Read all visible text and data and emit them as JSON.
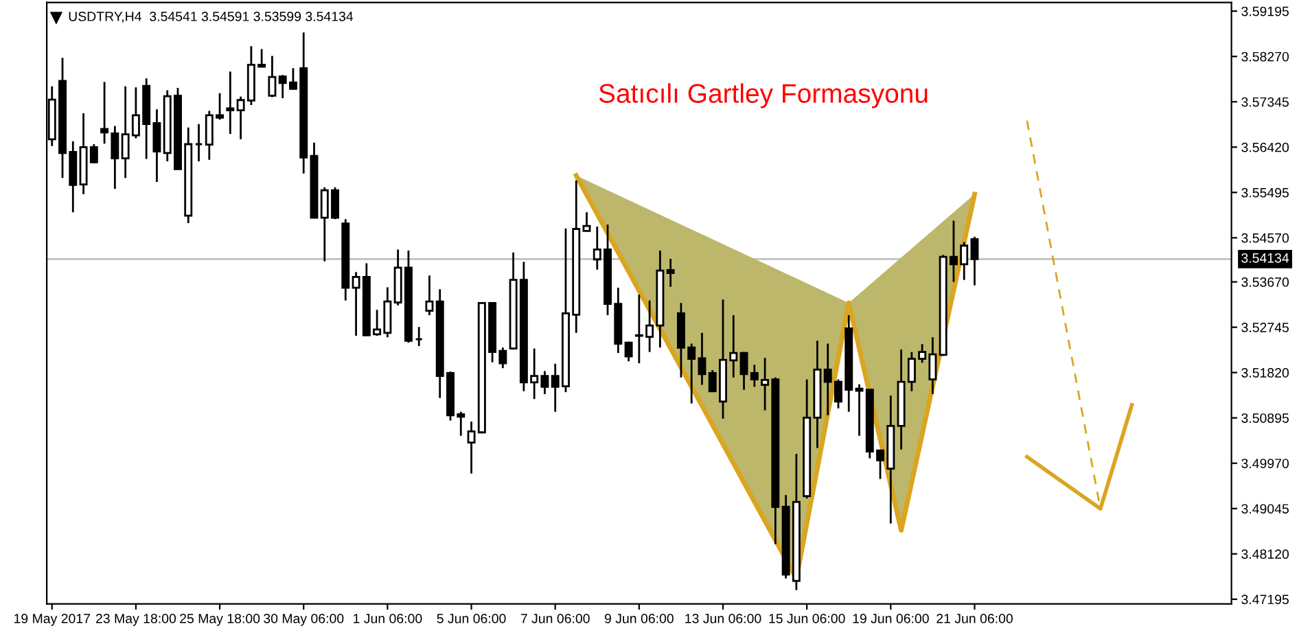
{
  "chart_data": {
    "type": "candlestick",
    "title": "USDTRY,H4  3.54541 3.54591 3.53599 3.54134",
    "annotations": [
      "Satıcılı Gartley Formasyonu"
    ],
    "categories": [
      "19 May 2017",
      null,
      null,
      null,
      null,
      null,
      null,
      null,
      "23 May 18:00",
      null,
      null,
      null,
      null,
      null,
      null,
      null,
      "25 May 18:00",
      null,
      null,
      null,
      null,
      null,
      null,
      null,
      "30 May 06:00",
      null,
      null,
      null,
      null,
      null,
      null,
      null,
      "1 Jun 06:00",
      null,
      null,
      null,
      null,
      null,
      null,
      null,
      "5 Jun 06:00",
      null,
      null,
      null,
      null,
      null,
      null,
      null,
      "7 Jun 06:00",
      null,
      null,
      null,
      null,
      null,
      null,
      null,
      "9 Jun 06:00",
      null,
      null,
      null,
      null,
      null,
      null,
      null,
      "13 Jun 06:00",
      null,
      null,
      null,
      null,
      null,
      null,
      null,
      "15 Jun 06:00",
      null,
      null,
      null,
      null,
      null,
      null,
      null,
      "19 Jun 06:00",
      null,
      null,
      null,
      null,
      null,
      null,
      null,
      "21 Jun 06:00",
      null,
      null,
      null,
      null,
      null,
      null,
      null,
      null,
      null,
      null,
      null,
      null,
      null,
      null,
      null,
      null,
      null,
      null,
      null,
      null,
      null,
      null,
      null,
      null
    ],
    "ohlc": [
      [
        3.5658,
        3.5766,
        3.5644,
        3.5739
      ],
      [
        3.5777,
        3.5824,
        3.5579,
        3.563
      ],
      [
        3.5632,
        3.5654,
        3.5509,
        3.5565
      ],
      [
        3.5566,
        3.5711,
        3.5546,
        3.5642
      ],
      [
        3.5642,
        3.5648,
        3.5609,
        3.5611
      ],
      [
        3.5679,
        3.5775,
        3.5649,
        3.5672
      ],
      [
        3.567,
        3.5685,
        3.5557,
        3.5619
      ],
      [
        3.5619,
        3.5766,
        3.5579,
        3.5668
      ],
      [
        3.5666,
        3.5764,
        3.566,
        3.5707
      ],
      [
        3.5767,
        3.5782,
        3.5618,
        3.5689
      ],
      [
        3.5691,
        3.5719,
        3.5571,
        3.5633
      ],
      [
        3.563,
        3.5758,
        3.5613,
        3.5746
      ],
      [
        3.5747,
        3.5763,
        3.5596,
        3.5597
      ],
      [
        3.5502,
        3.5682,
        3.5487,
        3.5648
      ],
      [
        3.5648,
        3.5689,
        3.5613,
        3.5648
      ],
      [
        3.5647,
        3.5716,
        3.5616,
        3.5707
      ],
      [
        3.5707,
        3.5752,
        3.5698,
        3.5702
      ],
      [
        3.5721,
        3.5796,
        3.5669,
        3.5717
      ],
      [
        3.5717,
        3.5745,
        3.5658,
        3.5738
      ],
      [
        3.5737,
        3.5848,
        3.5728,
        3.581
      ],
      [
        3.581,
        3.5842,
        3.5805,
        3.5806
      ],
      [
        3.5747,
        3.5828,
        3.5744,
        3.5785
      ],
      [
        3.5786,
        3.5789,
        3.5742,
        3.5773
      ],
      [
        3.5774,
        3.5803,
        3.5759,
        3.5761
      ],
      [
        3.5803,
        3.5876,
        3.5588,
        3.5621
      ],
      [
        3.5624,
        3.5651,
        3.5498,
        3.5498
      ],
      [
        3.5498,
        3.556,
        3.5409,
        3.5554
      ],
      [
        3.5554,
        3.556,
        3.5495,
        3.5498
      ],
      [
        3.5486,
        3.5495,
        3.5329,
        3.5355
      ],
      [
        3.5355,
        3.5387,
        3.5257,
        3.5377
      ],
      [
        3.5377,
        3.5405,
        3.5257,
        3.5258
      ],
      [
        3.526,
        3.531,
        3.5257,
        3.527
      ],
      [
        3.5263,
        3.5356,
        3.5254,
        3.5327
      ],
      [
        3.5325,
        3.5433,
        3.5319,
        3.5396
      ],
      [
        3.5396,
        3.5431,
        3.5243,
        3.5247
      ],
      [
        3.525,
        3.5275,
        3.5236,
        3.525
      ],
      [
        3.5308,
        3.538,
        3.5299,
        3.5327
      ],
      [
        3.5327,
        3.5352,
        3.513,
        3.5175
      ],
      [
        3.5181,
        3.5184,
        3.5084,
        3.5095
      ],
      [
        3.5097,
        3.5102,
        3.5053,
        3.5092
      ],
      [
        3.5039,
        3.5082,
        3.4976,
        3.5062
      ],
      [
        3.506,
        3.5324,
        3.5058,
        3.5324
      ],
      [
        3.5324,
        3.5324,
        3.5203,
        3.5224
      ],
      [
        3.5226,
        3.5233,
        3.5191,
        3.5201
      ],
      [
        3.5231,
        3.5427,
        3.5229,
        3.5371
      ],
      [
        3.5371,
        3.5408,
        3.5144,
        3.5162
      ],
      [
        3.5162,
        3.5231,
        3.5128,
        3.5175
      ],
      [
        3.5175,
        3.5185,
        3.5138,
        3.5153
      ],
      [
        3.5175,
        3.52,
        3.5102,
        3.5153
      ],
      [
        3.5154,
        3.5476,
        3.5142,
        3.5303
      ],
      [
        3.53,
        3.5574,
        3.5263,
        3.5475
      ],
      [
        3.5471,
        3.5509,
        3.547,
        3.5481
      ],
      [
        3.5413,
        3.548,
        3.5392,
        3.5433
      ],
      [
        3.5433,
        3.5484,
        3.5299,
        3.5322
      ],
      [
        3.5322,
        3.5355,
        3.5222,
        3.5241
      ],
      [
        3.5243,
        3.5245,
        3.5205,
        3.5215
      ],
      [
        3.5258,
        3.5341,
        3.5201,
        3.5257
      ],
      [
        3.5255,
        3.5329,
        3.5224,
        3.5278
      ],
      [
        3.5278,
        3.5431,
        3.5233,
        3.539
      ],
      [
        3.5391,
        3.5414,
        3.5357,
        3.5385
      ],
      [
        3.5303,
        3.5324,
        3.5172,
        3.5233
      ],
      [
        3.5233,
        3.5241,
        3.5119,
        3.521
      ],
      [
        3.5211,
        3.5263,
        3.5157,
        3.5179
      ],
      [
        3.5181,
        3.5187,
        3.5144,
        3.5144
      ],
      [
        3.5123,
        3.5331,
        3.5088,
        3.5208
      ],
      [
        3.5207,
        3.5299,
        3.5172,
        3.5222
      ],
      [
        3.5222,
        3.5224,
        3.5147,
        3.5179
      ],
      [
        3.5181,
        3.5198,
        3.5153,
        3.5168
      ],
      [
        3.5157,
        3.5212,
        3.5105,
        3.5167
      ],
      [
        3.5168,
        3.5172,
        3.4832,
        3.4908
      ],
      [
        3.4908,
        3.4932,
        3.4762,
        3.477
      ],
      [
        3.4757,
        3.5016,
        3.4738,
        3.4918
      ],
      [
        3.493,
        3.5168,
        3.4925,
        3.509
      ],
      [
        3.509,
        3.5247,
        3.5028,
        3.5188
      ],
      [
        3.5188,
        3.5241,
        3.5095,
        3.5163
      ],
      [
        3.5163,
        3.5168,
        3.5109,
        3.5123
      ],
      [
        3.5272,
        3.5299,
        3.5102,
        3.5147
      ],
      [
        3.5149,
        3.5158,
        3.5053,
        3.5145
      ],
      [
        3.5147,
        3.5147,
        3.5007,
        3.5021
      ],
      [
        3.5023,
        3.5023,
        3.4965,
        3.5003
      ],
      [
        3.4986,
        3.5135,
        3.4874,
        3.5073
      ],
      [
        3.5073,
        3.5229,
        3.5025,
        3.5163
      ],
      [
        3.5163,
        3.5224,
        3.5144,
        3.521
      ],
      [
        3.521,
        3.524,
        3.5202,
        3.5224
      ],
      [
        3.5168,
        3.5254,
        3.5138,
        3.5219
      ],
      [
        3.5218,
        3.5422,
        3.5216,
        3.5418
      ],
      [
        3.5418,
        3.5492,
        3.5367,
        3.5403
      ],
      [
        3.5403,
        3.5448,
        3.5371,
        3.5441
      ],
      [
        3.54541,
        3.54591,
        3.53599,
        3.54134
      ],
      null,
      null,
      null,
      null,
      null,
      null,
      null,
      null,
      null,
      null,
      null,
      null,
      null,
      null,
      null,
      null,
      null,
      null,
      null,
      null,
      null,
      null,
      null,
      null
    ],
    "series": [
      {
        "type": "area",
        "color": "#daa520",
        "values": [
          null,
          null,
          null,
          null,
          null,
          null,
          null,
          null,
          null,
          null,
          null,
          null,
          null,
          null,
          null,
          null,
          null,
          null,
          null,
          null,
          null,
          null,
          null,
          null,
          null,
          null,
          null,
          null,
          null,
          null,
          null,
          null,
          null,
          null,
          null,
          null,
          null,
          null,
          null,
          null,
          null,
          null,
          null,
          null,
          null,
          null,
          null,
          null,
          null,
          null,
          3.5584,
          null,
          null,
          null,
          null,
          null,
          null,
          null,
          null,
          null,
          null,
          null,
          null,
          null,
          null,
          null,
          null,
          null,
          null,
          null,
          null,
          3.4762,
          null,
          null,
          null,
          null,
          3.5324,
          null,
          null,
          null,
          null,
          3.486,
          null,
          null,
          null,
          null,
          null,
          null,
          3.5546,
          null,
          null,
          null,
          null,
          null,
          null,
          null,
          null,
          null,
          null,
          null,
          null,
          null,
          null,
          null,
          null,
          null,
          null,
          null,
          null,
          null,
          null,
          null,
          null
        ]
      },
      {
        "type": "line",
        "color": "#daa520",
        "line_style": "solid",
        "values": [
          null,
          null,
          null,
          null,
          null,
          null,
          null,
          null,
          null,
          null,
          null,
          null,
          null,
          null,
          null,
          null,
          null,
          null,
          null,
          null,
          null,
          null,
          null,
          null,
          null,
          null,
          null,
          null,
          null,
          null,
          null,
          null,
          null,
          null,
          null,
          null,
          null,
          null,
          null,
          null,
          null,
          null,
          null,
          null,
          null,
          null,
          null,
          null,
          null,
          null,
          null,
          null,
          null,
          null,
          null,
          null,
          null,
          null,
          null,
          null,
          null,
          null,
          null,
          null,
          null,
          null,
          null,
          null,
          null,
          null,
          null,
          null,
          null,
          null,
          null,
          null,
          null,
          null,
          null,
          null,
          null,
          null,
          null,
          null,
          null,
          null,
          null,
          null,
          null,
          null,
          null,
          null,
          null,
          3.501,
          null,
          null,
          null,
          null,
          null,
          null,
          3.4904,
          null,
          null,
          3.5116,
          null,
          null,
          null,
          null,
          null,
          null,
          null,
          null,
          null
        ]
      },
      {
        "type": "line",
        "color": "#daa520",
        "line_style": "dashed",
        "values": [
          null,
          null,
          null,
          null,
          null,
          null,
          null,
          null,
          null,
          null,
          null,
          null,
          null,
          null,
          null,
          null,
          null,
          null,
          null,
          null,
          null,
          null,
          null,
          null,
          null,
          null,
          null,
          null,
          null,
          null,
          null,
          null,
          null,
          null,
          null,
          null,
          null,
          null,
          null,
          null,
          null,
          null,
          null,
          null,
          null,
          null,
          null,
          null,
          null,
          null,
          null,
          null,
          null,
          null,
          null,
          null,
          null,
          null,
          null,
          null,
          null,
          null,
          null,
          null,
          null,
          null,
          null,
          null,
          null,
          null,
          null,
          null,
          null,
          null,
          null,
          null,
          null,
          null,
          null,
          null,
          null,
          null,
          null,
          null,
          null,
          null,
          null,
          null,
          null,
          null,
          null,
          null,
          null,
          3.5696,
          null,
          null,
          null,
          null,
          null,
          null,
          3.4904,
          null,
          null,
          null,
          null,
          null,
          null,
          null,
          null,
          null,
          null,
          null,
          null
        ]
      }
    ],
    "ref_lines": [
      {
        "axis": "y",
        "value": 3.54134,
        "label": "3.54134",
        "color": "#c0c0c0"
      }
    ],
    "ylim": [
      3.471,
      3.5937
    ],
    "yticks": [
      3.59195,
      {
        "value": 3.5827,
        "label": "3.58270"
      },
      3.57345,
      {
        "value": 3.5642,
        "label": "3.56420"
      },
      3.55495,
      {
        "value": 3.5457,
        "label": "3.54570"
      },
      {
        "value": 3.5367,
        "label": "3.53670"
      },
      3.52745,
      {
        "value": 3.5182,
        "label": "3.51820"
      },
      3.50895,
      {
        "value": 3.4997,
        "label": "3.49970"
      },
      3.49045,
      {
        "value": 3.4812,
        "label": "3.48120"
      },
      3.47195
    ]
  }
}
